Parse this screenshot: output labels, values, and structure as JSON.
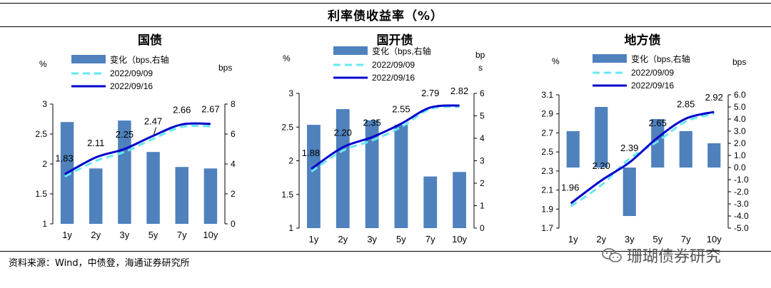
{
  "header": {
    "title": "利率债收益率（%）"
  },
  "footer": {
    "source": "资料来源：Wind，中债登，海通证券研究所",
    "watermark": "珊瑚债券研究"
  },
  "legend": {
    "bar": "变化（bps,右轴",
    "dashed": "2022/09/09",
    "solid": "2022/09/16"
  },
  "colors": {
    "bar": "#4f81bd",
    "dashed": "#66e8f0",
    "solid": "#0000cc"
  },
  "chart_data": [
    {
      "type": "bar",
      "title": "国债",
      "categories": [
        "1y",
        "2y",
        "3y",
        "5y",
        "7y",
        "10y"
      ],
      "ylabel": "%",
      "y2label": "bps",
      "ylim": [
        1,
        3
      ],
      "yticks": [
        "1",
        "1.5",
        "2",
        "2.5",
        "3"
      ],
      "y2lim": [
        0,
        8
      ],
      "y2ticks": [
        "0",
        "2",
        "4",
        "6",
        "8"
      ],
      "series": [
        {
          "name": "变化（bps,右轴",
          "kind": "bar",
          "axis": "right",
          "values": [
            6.8,
            3.7,
            6.9,
            4.8,
            3.8,
            3.7
          ]
        },
        {
          "name": "2022/09/09",
          "kind": "line",
          "axis": "left",
          "values": [
            1.79,
            2.05,
            2.2,
            2.42,
            2.62,
            2.63
          ]
        },
        {
          "name": "2022/09/16",
          "kind": "line",
          "axis": "left",
          "values": [
            1.83,
            2.11,
            2.25,
            2.47,
            2.66,
            2.67
          ]
        }
      ],
      "data_labels": [
        "1.83",
        "2.11",
        "2.25",
        "2.47",
        "2.66",
        "2.67"
      ]
    },
    {
      "type": "bar",
      "title": "国开债",
      "categories": [
        "1y",
        "2y",
        "3y",
        "5y",
        "7y",
        "10y"
      ],
      "ylabel": "%",
      "y2label": "bps",
      "ylim": [
        1,
        3
      ],
      "yticks": [
        "1",
        "1.5",
        "2",
        "2.5",
        "3"
      ],
      "y2lim": [
        0,
        6
      ],
      "y2ticks": [
        "0",
        "1",
        "2",
        "3",
        "4",
        "5",
        "6"
      ],
      "series": [
        {
          "name": "变化（bps,右轴",
          "kind": "bar",
          "axis": "right",
          "values": [
            4.6,
            5.3,
            4.8,
            4.6,
            2.3,
            2.5
          ]
        },
        {
          "name": "2022/09/09",
          "kind": "line",
          "axis": "left",
          "values": [
            1.84,
            2.15,
            2.3,
            2.5,
            2.77,
            2.8
          ]
        },
        {
          "name": "2022/09/16",
          "kind": "line",
          "axis": "left",
          "values": [
            1.88,
            2.2,
            2.35,
            2.55,
            2.79,
            2.82
          ]
        }
      ],
      "data_labels": [
        "1.88",
        "2.20",
        "2.35",
        "2.55",
        "2.79",
        "2.82"
      ]
    },
    {
      "type": "bar",
      "title": "地方债",
      "categories": [
        "1y",
        "2y",
        "3y",
        "5y",
        "7y",
        "10y"
      ],
      "ylabel": "%",
      "y2label": "bps",
      "ylim": [
        1.7,
        3.1
      ],
      "yticks": [
        "1.7",
        "1.9",
        "2.1",
        "2.3",
        "2.5",
        "2.7",
        "2.9",
        "3.1"
      ],
      "y2lim": [
        -5,
        6
      ],
      "y2ticks": [
        "-5.0",
        "-4.0",
        "-3.0",
        "-2.0",
        "-1.0",
        "0.0",
        "1.0",
        "2.0",
        "3.0",
        "4.0",
        "5.0",
        "6.0"
      ],
      "series": [
        {
          "name": "变化（bps,右轴",
          "kind": "bar",
          "axis": "right",
          "values": [
            3.0,
            5.0,
            -4.0,
            4.0,
            3.0,
            2.0
          ]
        },
        {
          "name": "2022/09/09",
          "kind": "line",
          "axis": "left",
          "values": [
            1.93,
            2.15,
            2.43,
            2.61,
            2.82,
            2.9
          ]
        },
        {
          "name": "2022/09/16",
          "kind": "line",
          "axis": "left",
          "values": [
            1.96,
            2.2,
            2.39,
            2.65,
            2.85,
            2.92
          ]
        }
      ],
      "data_labels": [
        "1.96",
        "2.20",
        "2.39",
        "2.65",
        "2.85",
        "2.92"
      ]
    }
  ]
}
